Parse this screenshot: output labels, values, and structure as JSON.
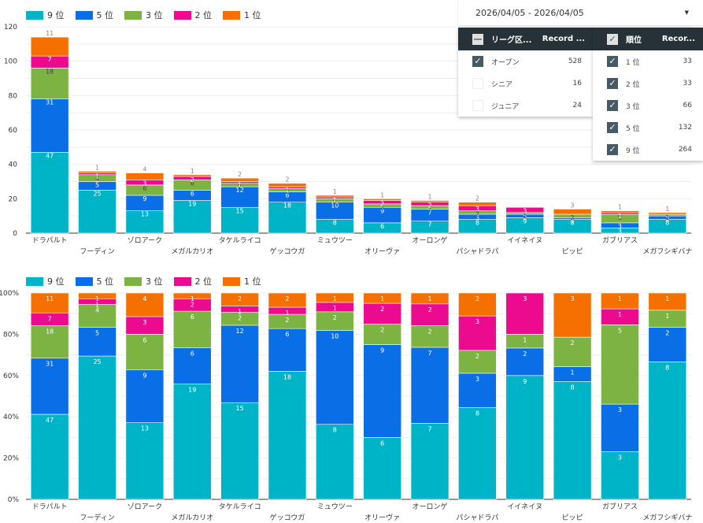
{
  "colors": {
    "9位": "#00b4c8",
    "5位": "#0a6ee6",
    "3位": "#7cb342",
    "2位": "#ec0b8f",
    "1位": "#f57000"
  },
  "legend": [
    {
      "key": "9位",
      "label": "9 位"
    },
    {
      "key": "5位",
      "label": "5 位"
    },
    {
      "key": "3位",
      "label": "3 位"
    },
    {
      "key": "2位",
      "label": "2 位"
    },
    {
      "key": "1位",
      "label": "1 位"
    }
  ],
  "filters": {
    "date_range": "2026/04/05 - 2026/04/05",
    "league": {
      "header_label": "リーグ区...",
      "header_count": "Record ...",
      "items": [
        {
          "label": "オープン",
          "count": "528",
          "checked": true
        },
        {
          "label": "シニア",
          "count": "16",
          "checked": false
        },
        {
          "label": "ジュニア",
          "count": "24",
          "checked": false
        }
      ]
    },
    "rank": {
      "header_label": "順位",
      "header_count": "Recor...",
      "items": [
        {
          "label": "1 位",
          "count": "33",
          "checked": true
        },
        {
          "label": "2 位",
          "count": "33",
          "checked": true
        },
        {
          "label": "3 位",
          "count": "66",
          "checked": true
        },
        {
          "label": "5 位",
          "count": "132",
          "checked": true
        },
        {
          "label": "9 位",
          "count": "264",
          "checked": true
        }
      ]
    }
  },
  "chart_data": [
    {
      "type": "bar",
      "stacked": true,
      "normalized": false,
      "categories": [
        "ドラパルト",
        "フーディン",
        "ゾロアーク",
        "メガルカリオ",
        "タケルライコ",
        "ゲッコウガ",
        "ミュウツー",
        "オリーヴァ",
        "オーロンゲ",
        "パシャドラパ",
        "イイネイヌ",
        "ピッピ",
        "ガブリアス",
        "メガフシギバナ"
      ],
      "series": [
        {
          "name": "9位",
          "values": [
            47,
            25,
            13,
            19,
            15,
            18,
            8,
            6,
            7,
            8,
            9,
            8,
            3,
            8
          ]
        },
        {
          "name": "5位",
          "values": [
            31,
            5,
            9,
            6,
            12,
            6,
            10,
            9,
            7,
            3,
            2,
            1,
            3,
            2
          ]
        },
        {
          "name": "3位",
          "values": [
            18,
            4,
            6,
            6,
            2,
            2,
            2,
            2,
            2,
            2,
            1,
            2,
            5,
            1
          ]
        },
        {
          "name": "2位",
          "values": [
            7,
            1,
            3,
            2,
            1,
            1,
            1,
            2,
            2,
            3,
            3,
            0,
            1,
            0
          ]
        },
        {
          "name": "1位",
          "values": [
            11,
            1,
            4,
            1,
            2,
            2,
            1,
            1,
            1,
            2,
            0,
            3,
            1,
            1
          ]
        }
      ],
      "yticks": [
        0,
        20,
        40,
        60,
        80,
        100,
        120
      ],
      "ylim": [
        0,
        120
      ],
      "grid": true,
      "legend": "top-left",
      "title": "",
      "xlabel": "",
      "ylabel": ""
    },
    {
      "type": "bar",
      "stacked": true,
      "normalized": true,
      "categories": [
        "ドラパルト",
        "フーディン",
        "ゾロアーク",
        "メガルカリオ",
        "タケルライコ",
        "ゲッコウガ",
        "ミュウツー",
        "オリーヴァ",
        "オーロンゲ",
        "パシャドラパ",
        "イイネイヌ",
        "ピッピ",
        "ガブリアス",
        "メガフシギバナ"
      ],
      "series": [
        {
          "name": "9位",
          "values": [
            47,
            25,
            13,
            19,
            15,
            18,
            8,
            6,
            7,
            8,
            9,
            8,
            3,
            8
          ]
        },
        {
          "name": "5位",
          "values": [
            31,
            5,
            9,
            6,
            12,
            6,
            10,
            9,
            7,
            3,
            2,
            1,
            3,
            2
          ]
        },
        {
          "name": "3位",
          "values": [
            18,
            4,
            6,
            6,
            2,
            2,
            2,
            2,
            2,
            2,
            1,
            2,
            5,
            1
          ]
        },
        {
          "name": "2位",
          "values": [
            7,
            1,
            3,
            2,
            1,
            1,
            1,
            2,
            2,
            3,
            3,
            0,
            1,
            0
          ]
        },
        {
          "name": "1位",
          "values": [
            11,
            1,
            4,
            1,
            2,
            2,
            1,
            1,
            1,
            2,
            0,
            3,
            1,
            1
          ]
        }
      ],
      "yticks": [
        "0%",
        "20%",
        "40%",
        "60%",
        "80%",
        "100%"
      ],
      "ylim": [
        0,
        100
      ],
      "grid": true,
      "legend": "top-left",
      "title": "",
      "xlabel": "",
      "ylabel": ""
    }
  ]
}
